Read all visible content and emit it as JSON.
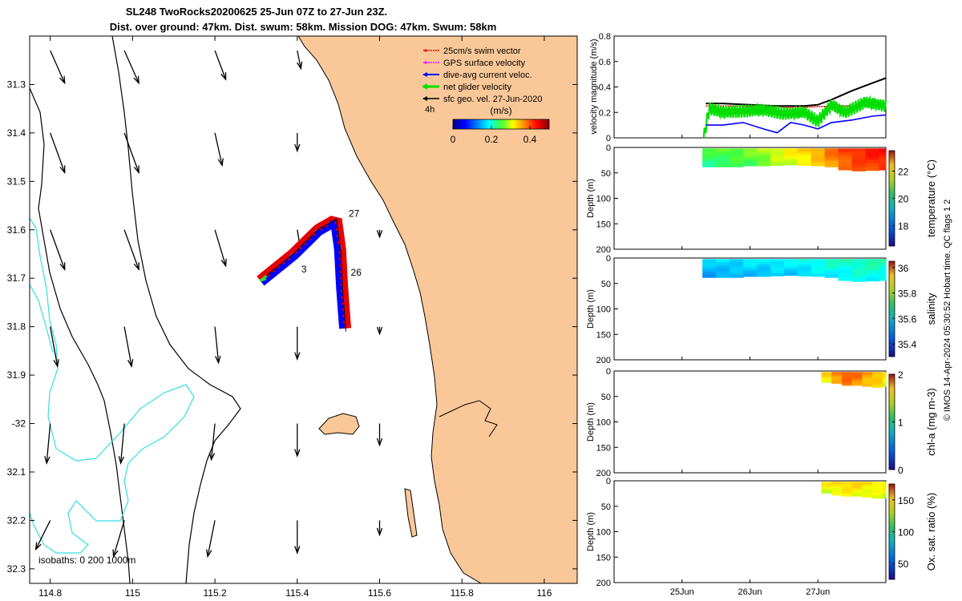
{
  "title_line1": "SL248 TwoRocks20200625 25-Jun 07Z to 27-Jun 23Z.",
  "title_line2": "Dist. over ground: 47km. Dist. swum: 58km. Mission DOG: 47km. Swum: 58km",
  "credit": "© IMOS 14-Apr-2024 05:30:52 Hobart time. QC flags 1  2",
  "colors": {
    "land": "#fac898",
    "isobath_200": "#000000",
    "isobath_1000": "#000000",
    "isobath_0": "#33e0e0",
    "swim": "#e60000",
    "gps": "#ff00ff",
    "dive_avg": "#0000ff",
    "net": "#00dd00",
    "geo": "#000000"
  },
  "chart_data": [
    {
      "type": "map",
      "xlim": [
        114.75,
        116.08
      ],
      "ylim": [
        -32.33,
        -31.2
      ],
      "xticks": [
        114.8,
        115,
        115.2,
        115.4,
        115.6,
        115.8,
        116
      ],
      "xticklabels": [
        "114.8",
        "115",
        "115.2",
        "115.4",
        "115.6",
        "115.8",
        "116"
      ],
      "yticks": [
        -31.3,
        -31.4,
        -31.5,
        -31.6,
        -31.7,
        -31.8,
        -31.9,
        -32,
        -32.1,
        -32.2,
        -32.3
      ],
      "yticklabels": [
        "31.3",
        "31.4",
        "31.5",
        "31.6",
        "31.7",
        "31.8",
        "31.9",
        "-32",
        "32.1",
        "32.2",
        "32.3"
      ],
      "legend": [
        {
          "label": "25cm/s swim vector",
          "color": "#e60000"
        },
        {
          "label": "GPS surface velocity",
          "color": "#ff00ff"
        },
        {
          "label": "dive-avg current veloc.",
          "color": "#0000ff"
        },
        {
          "label": "net glider velocity",
          "color": "#00dd00"
        },
        {
          "label": "sfc geo. vel. 27-Jun-2020",
          "color": "#000000"
        }
      ],
      "legend_extra": "4h",
      "colorbar": {
        "label": "(m/s)",
        "ticks": [
          0,
          0.2,
          0.4
        ],
        "ticklabels": [
          "0",
          "0.2",
          "0.4"
        ],
        "range": [
          0,
          0.5
        ]
      },
      "isobath_note": "isobaths: 0   200  1000m",
      "track_labels": [
        {
          "text": "27",
          "lon": 115.525,
          "lat": -31.573
        },
        {
          "text": "26",
          "lon": 115.53,
          "lat": -31.695
        },
        {
          "text": "3",
          "lon": 115.41,
          "lat": -31.688
        }
      ],
      "track": [
        {
          "lon": 115.31,
          "lat": -31.705
        },
        {
          "lon": 115.39,
          "lat": -31.65
        },
        {
          "lon": 115.45,
          "lat": -31.6
        },
        {
          "lon": 115.495,
          "lat": -31.578
        },
        {
          "lon": 115.505,
          "lat": -31.64
        },
        {
          "lon": 115.51,
          "lat": -31.72
        },
        {
          "lon": 115.518,
          "lat": -31.81
        }
      ],
      "geo_vectors": [
        {
          "lon": 114.8,
          "lat": -31.23,
          "u": 0.04,
          "v": -0.09
        },
        {
          "lon": 114.98,
          "lat": -31.23,
          "u": 0.04,
          "v": -0.09
        },
        {
          "lon": 115.2,
          "lat": -31.23,
          "u": 0.03,
          "v": -0.08
        },
        {
          "lon": 115.4,
          "lat": -31.23,
          "u": 0.01,
          "v": -0.05
        },
        {
          "lon": 114.8,
          "lat": -31.4,
          "u": 0.04,
          "v": -0.11
        },
        {
          "lon": 114.98,
          "lat": -31.4,
          "u": 0.04,
          "v": -0.11
        },
        {
          "lon": 115.2,
          "lat": -31.4,
          "u": 0.02,
          "v": -0.09
        },
        {
          "lon": 115.4,
          "lat": -31.4,
          "u": 0.0,
          "v": -0.05
        },
        {
          "lon": 114.8,
          "lat": -31.6,
          "u": 0.04,
          "v": -0.11
        },
        {
          "lon": 114.98,
          "lat": -31.6,
          "u": 0.04,
          "v": -0.11
        },
        {
          "lon": 115.2,
          "lat": -31.6,
          "u": 0.03,
          "v": -0.1
        },
        {
          "lon": 115.4,
          "lat": -31.6,
          "u": 0.01,
          "v": -0.06
        },
        {
          "lon": 115.6,
          "lat": -31.6,
          "u": 0.0,
          "v": -0.02
        },
        {
          "lon": 114.8,
          "lat": -31.8,
          "u": 0.02,
          "v": -0.11
        },
        {
          "lon": 114.98,
          "lat": -31.8,
          "u": 0.02,
          "v": -0.11
        },
        {
          "lon": 115.2,
          "lat": -31.8,
          "u": 0.01,
          "v": -0.1
        },
        {
          "lon": 115.4,
          "lat": -31.8,
          "u": 0.0,
          "v": -0.09
        },
        {
          "lon": 115.6,
          "lat": -31.8,
          "u": 0.0,
          "v": -0.02
        },
        {
          "lon": 114.8,
          "lat": -32.0,
          "u": -0.01,
          "v": -0.11
        },
        {
          "lon": 114.98,
          "lat": -32.0,
          "u": -0.01,
          "v": -0.11
        },
        {
          "lon": 115.2,
          "lat": -32.0,
          "u": -0.01,
          "v": -0.1
        },
        {
          "lon": 115.4,
          "lat": -32.0,
          "u": 0.0,
          "v": -0.09
        },
        {
          "lon": 115.6,
          "lat": -32.0,
          "u": 0.0,
          "v": -0.06
        },
        {
          "lon": 114.8,
          "lat": -32.2,
          "u": -0.04,
          "v": -0.08
        },
        {
          "lon": 114.98,
          "lat": -32.2,
          "u": -0.03,
          "v": -0.1
        },
        {
          "lon": 115.2,
          "lat": -32.2,
          "u": -0.02,
          "v": -0.1
        },
        {
          "lon": 115.4,
          "lat": -32.2,
          "u": 0.0,
          "v": -0.09
        },
        {
          "lon": 115.6,
          "lat": -32.2,
          "u": 0.0,
          "v": -0.04
        }
      ]
    },
    {
      "type": "line",
      "ylabel": "velocity magnitude (m/s)",
      "ylim": [
        0,
        0.8
      ],
      "yticks": [
        0,
        0.2,
        0.4,
        0.6,
        0.8
      ],
      "xlim_days": [
        24.0,
        28.0
      ],
      "series": [
        {
          "color": "#000000",
          "x": [
            25.35,
            25.6,
            26.0,
            26.4,
            26.8,
            27.0,
            27.2,
            27.5,
            27.8,
            28.0
          ],
          "y": [
            0.27,
            0.27,
            0.26,
            0.25,
            0.25,
            0.26,
            0.3,
            0.37,
            0.43,
            0.47
          ]
        },
        {
          "color": "#e60000",
          "x": [
            25.35,
            25.8,
            26.3,
            26.8,
            27.2,
            27.6,
            28.0
          ],
          "y": [
            0.25,
            0.25,
            0.24,
            0.24,
            0.25,
            0.25,
            0.26
          ]
        },
        {
          "color": "#00dd00",
          "x": [
            25.32,
            25.4,
            25.6,
            25.9,
            26.2,
            26.5,
            26.8,
            27.0,
            27.2,
            27.4,
            27.7,
            28.0
          ],
          "y": [
            0.0,
            0.23,
            0.2,
            0.21,
            0.22,
            0.19,
            0.2,
            0.13,
            0.26,
            0.2,
            0.28,
            0.25
          ]
        },
        {
          "color": "#0000ff",
          "x": [
            25.35,
            25.6,
            25.9,
            26.2,
            26.4,
            26.6,
            26.8,
            27.0,
            27.2,
            27.5,
            27.8,
            28.0
          ],
          "y": [
            0.1,
            0.1,
            0.12,
            0.07,
            0.04,
            0.12,
            0.1,
            0.07,
            0.12,
            0.14,
            0.17,
            0.18
          ]
        }
      ]
    },
    {
      "type": "heatmap",
      "ylabel": "Depth (m)",
      "clabel": "temperature (°C)",
      "ylim": [
        0,
        200
      ],
      "yticks": [
        0,
        50,
        100,
        150,
        200
      ],
      "clim": [
        16.5,
        23.5
      ],
      "cticks": [
        18,
        20,
        22
      ],
      "x": [
        25.3,
        25.5,
        25.7,
        25.9,
        26.1,
        26.3,
        26.5,
        26.7,
        26.9,
        27.1,
        27.3,
        27.5,
        27.7,
        27.9,
        28.0
      ],
      "depth_max": [
        38,
        38,
        38,
        36,
        36,
        35,
        34,
        35,
        36,
        38,
        44,
        46,
        45,
        44,
        44
      ],
      "values": [
        20.0,
        20.1,
        20.2,
        20.3,
        20.5,
        20.8,
        21.0,
        21.2,
        21.5,
        21.9,
        22.2,
        22.4,
        22.5,
        22.6,
        22.6
      ]
    },
    {
      "type": "heatmap",
      "ylabel": "Depth (m)",
      "clabel": "salinity",
      "ylim": [
        0,
        200
      ],
      "yticks": [
        0,
        50,
        100,
        150,
        200
      ],
      "clim": [
        35.3,
        36.05
      ],
      "cticks": [
        35.4,
        35.6,
        35.8,
        36
      ],
      "x": [
        25.3,
        25.5,
        25.7,
        25.9,
        26.1,
        26.3,
        26.5,
        26.7,
        26.9,
        27.1,
        27.3,
        27.5,
        27.7,
        27.9,
        28.0
      ],
      "depth_max": [
        38,
        38,
        38,
        36,
        36,
        35,
        34,
        35,
        36,
        38,
        44,
        46,
        45,
        44,
        44
      ],
      "values": [
        35.55,
        35.56,
        35.56,
        35.57,
        35.57,
        35.58,
        35.58,
        35.59,
        35.6,
        35.61,
        35.61,
        35.62,
        35.62,
        35.62,
        35.62
      ]
    },
    {
      "type": "heatmap",
      "ylabel": "Depth (m)",
      "clabel": "chl-a (mg m-3)",
      "ylim": [
        0,
        200
      ],
      "yticks": [
        0,
        50,
        100,
        150,
        200
      ],
      "clim": [
        0,
        2
      ],
      "cticks": [
        0,
        1,
        2
      ],
      "x": [
        27.05,
        27.2,
        27.35,
        27.5,
        27.65,
        27.8,
        27.95,
        28.0
      ],
      "depth_max": [
        22,
        24,
        28,
        28,
        30,
        32,
        30,
        28
      ],
      "values": [
        1.35,
        1.5,
        1.6,
        1.55,
        1.45,
        1.4,
        1.3,
        1.3
      ]
    },
    {
      "type": "heatmap",
      "ylabel": "Depth (m)",
      "clabel": "Ox. sat. ratio (%)",
      "ylim": [
        0,
        200
      ],
      "yticks": [
        0,
        50,
        100,
        150,
        200
      ],
      "xticks": [
        25,
        26,
        27
      ],
      "xticklabels": [
        "25Jun",
        "26Jun",
        "27Jun"
      ],
      "clim": [
        25,
        175
      ],
      "cticks": [
        50,
        100,
        150
      ],
      "x": [
        27.05,
        27.2,
        27.35,
        27.5,
        27.65,
        27.8,
        27.95,
        28.0
      ],
      "depth_max": [
        24,
        28,
        30,
        30,
        32,
        34,
        34,
        34
      ],
      "values": [
        122,
        124,
        126,
        125,
        123,
        122,
        121,
        121
      ]
    }
  ]
}
